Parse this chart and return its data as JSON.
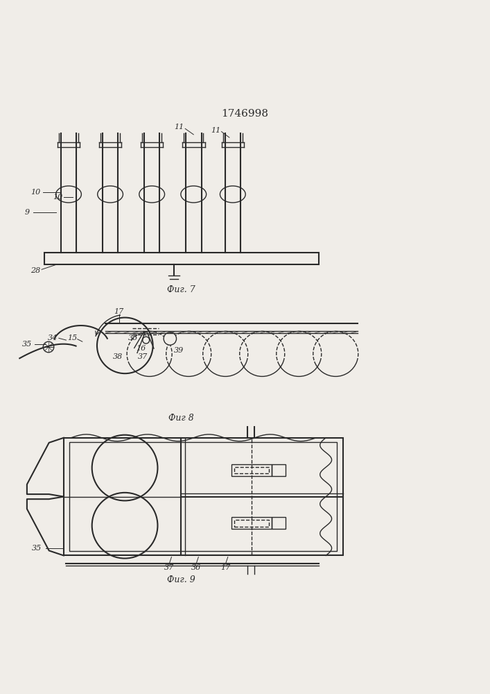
{
  "title_text": "1746998",
  "title_fontsize": 11,
  "fig7_caption": "Фиг. 7",
  "fig8_caption": "Фиг 8",
  "fig9_caption": "Фиг. 9",
  "bg_color": "#f0ede8",
  "line_color": "#2a2a2a"
}
